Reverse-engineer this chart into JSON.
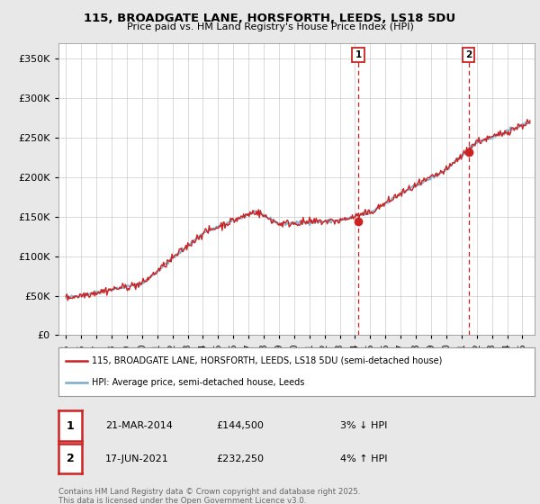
{
  "title_line1": "115, BROADGATE LANE, HORSFORTH, LEEDS, LS18 5DU",
  "title_line2": "Price paid vs. HM Land Registry's House Price Index (HPI)",
  "ylabel_ticks": [
    "£0",
    "£50K",
    "£100K",
    "£150K",
    "£200K",
    "£250K",
    "£300K",
    "£350K"
  ],
  "ytick_values": [
    0,
    50000,
    100000,
    150000,
    200000,
    250000,
    300000,
    350000
  ],
  "ylim": [
    0,
    370000
  ],
  "xlim_start": 1994.5,
  "xlim_end": 2025.8,
  "hpi_color": "#7aabcc",
  "price_color": "#cc2222",
  "vline_color": "#cc2222",
  "marker1_x": 2014.22,
  "marker1_y": 144500,
  "marker2_x": 2021.46,
  "marker2_y": 232250,
  "transaction1_date": "21-MAR-2014",
  "transaction1_price": "£144,500",
  "transaction1_note": "3% ↓ HPI",
  "transaction2_date": "17-JUN-2021",
  "transaction2_price": "£232,250",
  "transaction2_note": "4% ↑ HPI",
  "legend_line1": "115, BROADGATE LANE, HORSFORTH, LEEDS, LS18 5DU (semi-detached house)",
  "legend_line2": "HPI: Average price, semi-detached house, Leeds",
  "footer": "Contains HM Land Registry data © Crown copyright and database right 2025.\nThis data is licensed under the Open Government Licence v3.0.",
  "background_color": "#e8e8e8",
  "plot_bg_color": "#ffffff",
  "grid_color": "#cccccc"
}
